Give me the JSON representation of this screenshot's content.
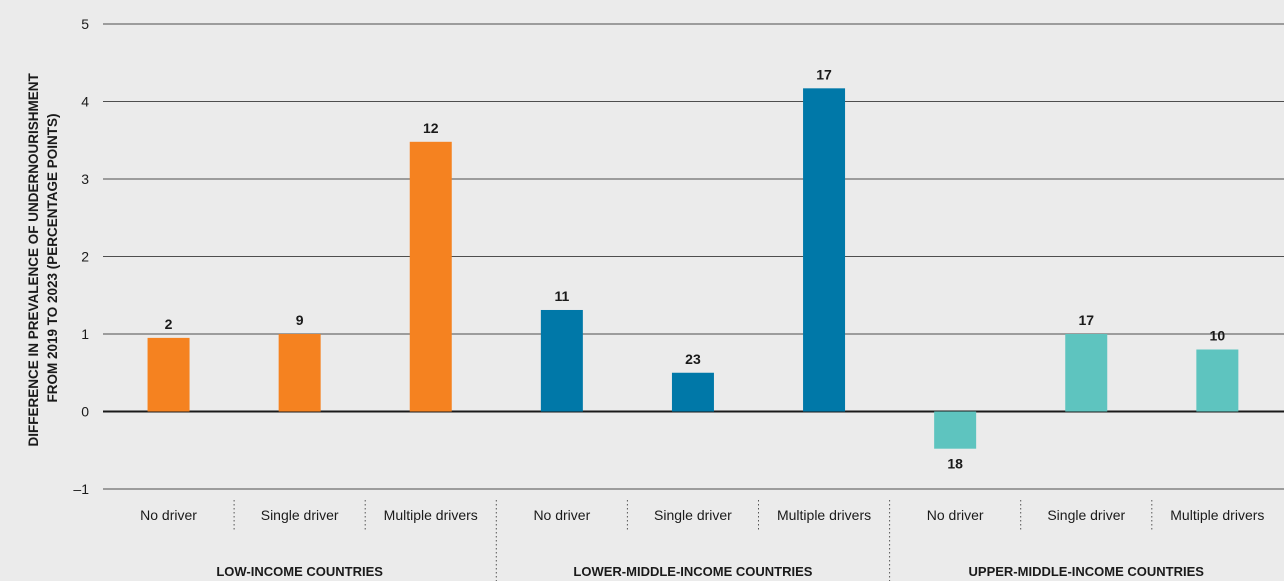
{
  "chart_data": {
    "type": "bar",
    "ylabel_lines": [
      "DIFFERENCE IN PREVALENCE OF UNDERNOURISHMENT",
      "FROM 2019 TO 2023 (PERCENTAGE POINTS)"
    ],
    "ylim": [
      -1,
      5
    ],
    "yticks": [
      5,
      4,
      3,
      2,
      1,
      0,
      -1
    ],
    "ytick_labels": [
      "5",
      "4",
      "3",
      "2",
      "1",
      "0",
      "–1"
    ],
    "grid": true,
    "groups": [
      {
        "name": "LOW-INCOME COUNTRIES",
        "color": "#f58220",
        "bars": [
          {
            "category": "No driver",
            "value": 0.95,
            "label": "2"
          },
          {
            "category": "Single driver",
            "value": 1.0,
            "label": "9"
          },
          {
            "category": "Multiple drivers",
            "value": 3.48,
            "label": "12"
          }
        ]
      },
      {
        "name": "LOWER-MIDDLE-INCOME COUNTRIES",
        "color": "#0078a8",
        "bars": [
          {
            "category": "No driver",
            "value": 1.31,
            "label": "11"
          },
          {
            "category": "Single driver",
            "value": 0.5,
            "label": "23"
          },
          {
            "category": "Multiple drivers",
            "value": 4.17,
            "label": "17"
          }
        ]
      },
      {
        "name": "UPPER-MIDDLE-INCOME COUNTRIES",
        "color": "#5ec4bf",
        "bars": [
          {
            "category": "No driver",
            "value": -0.48,
            "label": "18"
          },
          {
            "category": "Single driver",
            "value": 1.0,
            "label": "17"
          },
          {
            "category": "Multiple drivers",
            "value": 0.8,
            "label": "10"
          }
        ]
      }
    ]
  }
}
